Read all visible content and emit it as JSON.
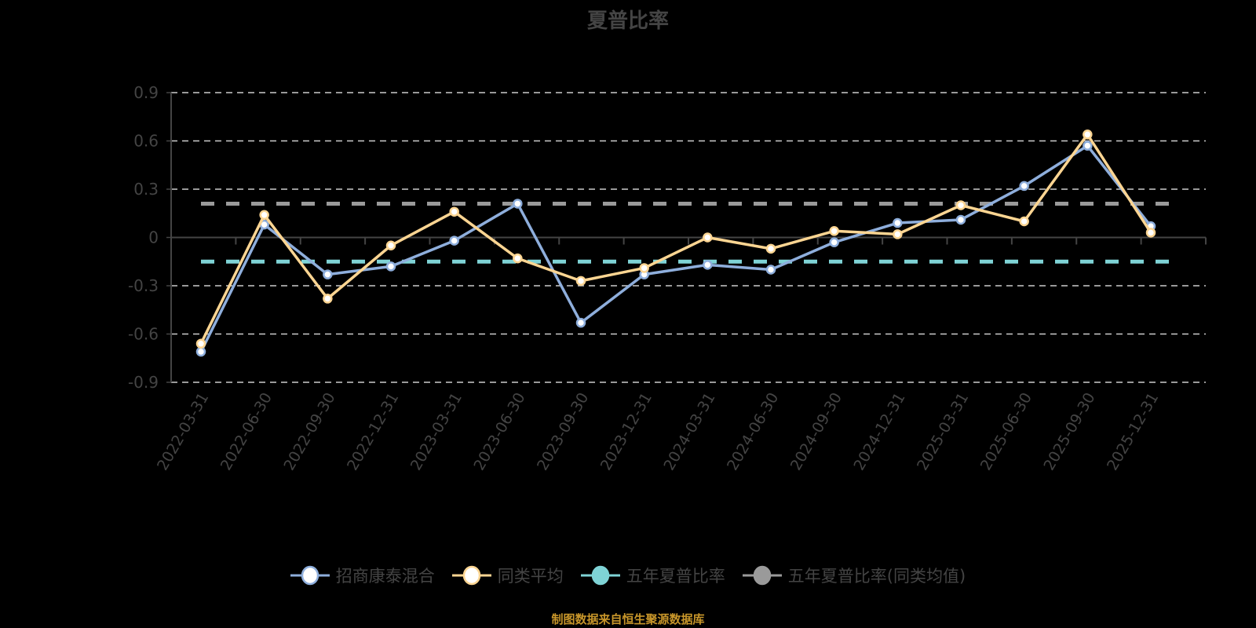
{
  "title": "夏普比率",
  "source": "制图数据来自恒生聚源数据库",
  "colors": {
    "fund": "#8eaedc",
    "peer": "#fcd592",
    "five_year": "#7fd3d6",
    "five_year_peer": "#9a9a9a",
    "grid": "#cccccc",
    "axis": "#444444",
    "source_text": "#c8962a"
  },
  "legend": [
    {
      "label": "招商康泰混合",
      "icon": "circle-marker-icon",
      "color": "#8eaedc",
      "filled": false
    },
    {
      "label": "同类平均",
      "icon": "circle-marker-icon",
      "color": "#fcd592",
      "filled": false
    },
    {
      "label": "五年夏普比率",
      "icon": "circle-marker-icon",
      "color": "#7fd3d6",
      "filled": true
    },
    {
      "label": "五年夏普比率(同类均值)",
      "icon": "circle-marker-icon",
      "color": "#9a9a9a",
      "filled": true
    }
  ],
  "chart_data": {
    "type": "line",
    "title": "夏普比率",
    "xlabel": "",
    "ylabel": "",
    "ylim": [
      -0.9,
      0.9
    ],
    "yticks": [
      0.9,
      0.6,
      0.3,
      0,
      -0.3,
      -0.6,
      -0.9
    ],
    "ytick_labels": [
      "0.9",
      "0.6",
      "0.3",
      "0",
      "-0.3",
      "-0.6",
      "-0.9"
    ],
    "grid": true,
    "legend_position": "bottom",
    "categories": [
      "2022-03-31",
      "2022-06-30",
      "2022-09-30",
      "2022-12-31",
      "2023-03-31",
      "2023-06-30",
      "2023-09-30",
      "2023-12-31",
      "2024-03-31",
      "2024-06-30",
      "2024-09-30",
      "2024-12-31",
      "2025-03-31",
      "2025-06-30",
      "2025-09-30",
      "2025-12-31"
    ],
    "series": [
      {
        "name": "招商康泰混合",
        "values": [
          -0.71,
          0.08,
          -0.23,
          -0.18,
          -0.02,
          0.21,
          -0.53,
          -0.23,
          -0.17,
          -0.2,
          -0.03,
          0.09,
          0.11,
          0.32,
          0.57,
          0.07
        ]
      },
      {
        "name": "同类平均",
        "values": [
          -0.66,
          0.14,
          -0.38,
          -0.05,
          0.16,
          -0.13,
          -0.27,
          -0.19,
          0.0,
          -0.07,
          0.04,
          0.02,
          0.2,
          0.1,
          0.64,
          0.03
        ]
      },
      {
        "name": "五年夏普比率",
        "constant": -0.15,
        "style": "dashed"
      },
      {
        "name": "五年夏普比率(同类均值)",
        "constant": 0.21,
        "style": "dashed"
      }
    ]
  }
}
